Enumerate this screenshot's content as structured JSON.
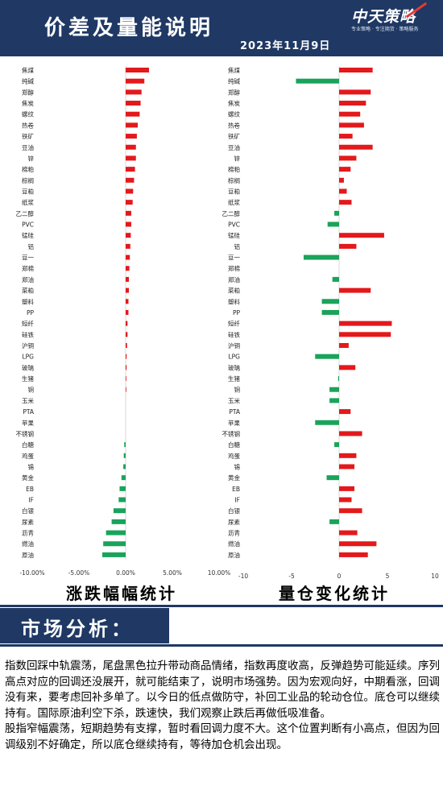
{
  "header": {
    "title": "价差及量能说明",
    "date": "2023年11月9日",
    "logo_text": "中天策略",
    "logo_tagline": "专业策略 · 专注期货 · 策略服务"
  },
  "colors": {
    "header_bg": "#1f3864",
    "up": "#e3191c",
    "down": "#1aa35a"
  },
  "chart_data": [
    {
      "type": "bar",
      "orientation": "horizontal",
      "title": "涨跌幅幅统计",
      "categories": [
        "焦煤",
        "纯碱",
        "郑醇",
        "焦炭",
        "螺纹",
        "热卷",
        "铁矿",
        "豆油",
        "锌",
        "棉粕",
        "棕榈",
        "豆粕",
        "纸浆",
        "乙二醇",
        "PVC",
        "锰硅",
        "铝",
        "豆一",
        "郑棉",
        "郑油",
        "菜粕",
        "塑料",
        "PP",
        "短纤",
        "硅铁",
        "沪铜",
        "LPG",
        "玻璃",
        "生猪",
        "铜",
        "玉米",
        "PTA",
        "苹果",
        "不锈钢",
        "白糖",
        "鸡蛋",
        "锡",
        "黄金",
        "EB",
        "IF",
        "白银",
        "尿素",
        "沥青",
        "燃油",
        "原油"
      ],
      "values": [
        2.5,
        2.0,
        1.7,
        1.6,
        1.5,
        1.3,
        1.2,
        1.1,
        1.1,
        1.0,
        0.9,
        0.8,
        0.75,
        0.6,
        0.6,
        0.55,
        0.5,
        0.45,
        0.4,
        0.35,
        0.35,
        0.3,
        0.3,
        0.2,
        0.2,
        0.15,
        0.1,
        0.1,
        0.05,
        0.05,
        0.0,
        0.0,
        0.0,
        0.0,
        -0.15,
        -0.2,
        -0.25,
        -0.45,
        -0.65,
        -0.75,
        -1.3,
        -1.5,
        -2.1,
        -2.4,
        -2.5
      ],
      "xlim": [
        -10,
        10
      ],
      "xticks": [
        "-10.00%",
        "-5.00%",
        "0.00%",
        "5.00%",
        "10.00%"
      ]
    },
    {
      "type": "bar",
      "orientation": "horizontal",
      "title": "量仓变化统计",
      "categories": [
        "焦煤",
        "纯碱",
        "郑醇",
        "焦炭",
        "螺纹",
        "热卷",
        "铁矿",
        "豆油",
        "锌",
        "棉粕",
        "棕榈",
        "豆粕",
        "纸浆",
        "乙二醇",
        "PVC",
        "锰硅",
        "铝",
        "豆一",
        "郑棉",
        "郑油",
        "菜粕",
        "塑料",
        "PP",
        "短纤",
        "硅铁",
        "沪铜",
        "LPG",
        "玻璃",
        "生猪",
        "铜",
        "玉米",
        "PTA",
        "苹果",
        "不锈钢",
        "白糖",
        "鸡蛋",
        "锡",
        "黄金",
        "EB",
        "IF",
        "白银",
        "尿素",
        "沥青",
        "燃油",
        "原油"
      ],
      "values": [
        3.5,
        -4.5,
        3.3,
        2.8,
        2.2,
        2.6,
        1.4,
        3.5,
        1.8,
        1.2,
        0.5,
        0.8,
        1.3,
        -0.5,
        -1.2,
        4.7,
        1.8,
        -3.7,
        0.0,
        -0.7,
        3.3,
        -1.8,
        -1.8,
        5.5,
        5.4,
        1.0,
        -2.5,
        1.7,
        -0.1,
        -1.0,
        -1.0,
        1.2,
        -2.5,
        2.4,
        -0.5,
        1.8,
        1.6,
        -1.3,
        1.6,
        1.3,
        2.4,
        -1.0,
        1.9,
        3.9,
        3.0
      ],
      "xlim": [
        -10,
        10
      ],
      "xticks": [
        "-10",
        "-5",
        "0",
        "5",
        "10"
      ]
    }
  ],
  "captions": {
    "left": "涨跌幅幅统计",
    "right": "量仓变化统计"
  },
  "section": {
    "title": "市场分析："
  },
  "analysis": {
    "p1": "指数回踩中轨震荡，尾盘黑色拉升带动商品情绪，指数再度收高，反弹趋势可能延续。序列高点对应的回调还没展开，就可能结束了，说明市场强势。因为宏观向好，中期看涨，回调没有来，要考虑回补多单了。以今日的低点做防守，补回工业品的轮动仓位。底仓可以继续持有。国际原油利空下杀，跌速快，我们观察止跌后再做低吸准备。",
    "p2": "股指窄幅震荡，短期趋势有支撑，暂时看回调力度不大。这个位置判断有小高点，但因为回调级别不好确定，所以底仓继续持有，等待加仓机会出现。"
  }
}
